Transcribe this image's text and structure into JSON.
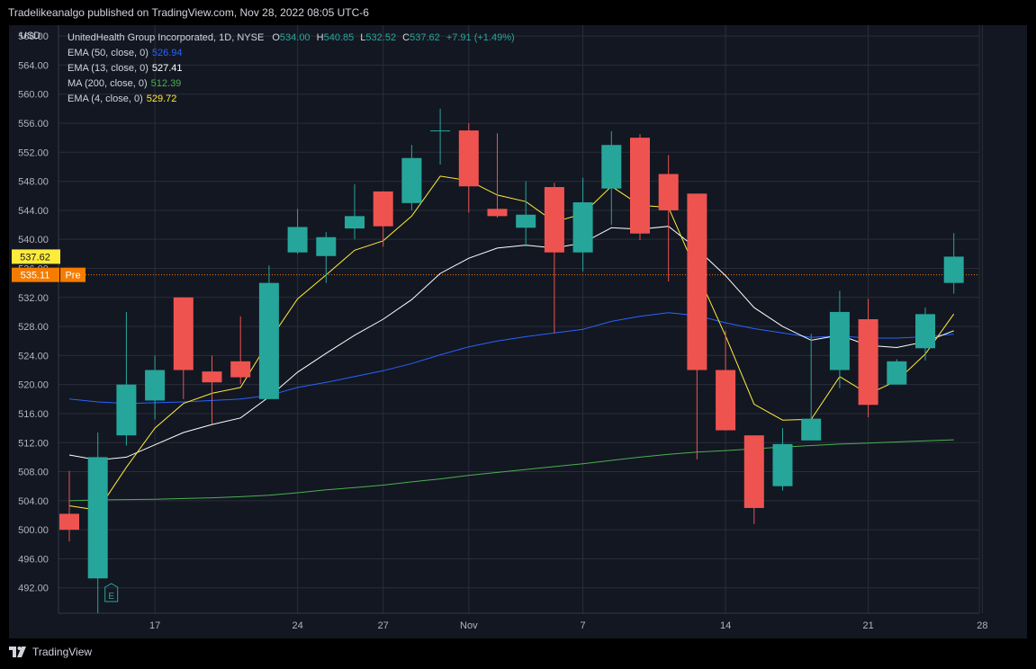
{
  "header": {
    "publisher_line": "Tradelikeanalgo published on TradingView.com, Nov 28, 2022 08:05 UTC-6"
  },
  "footer": {
    "brand": "TradingView"
  },
  "currency": "USD",
  "legend": {
    "symbol": "UnitedHealth Group Incorporated, 1D, NYSE",
    "ohlc": {
      "o_label": "O",
      "o": "534.00",
      "h_label": "H",
      "h": "540.85",
      "l_label": "L",
      "l": "532.52",
      "c_label": "C",
      "c": "537.62",
      "change": "+7.91 (+1.49%)"
    },
    "indicators": [
      {
        "label": "EMA (50, close, 0)",
        "value": "526.94",
        "color": "#2962ff"
      },
      {
        "label": "EMA (13, close, 0)",
        "value": "527.41",
        "color": "#ffffff"
      },
      {
        "label": "MA (200, close, 0)",
        "value": "512.39",
        "color": "#4caf50"
      },
      {
        "label": "EMA (4, close, 0)",
        "value": "529.72",
        "color": "#ffeb3b"
      }
    ]
  },
  "colors": {
    "up": "#26a69a",
    "down": "#ef5350",
    "background": "#131722",
    "grid": "#2a2e39",
    "text": "#b2b5be",
    "ema50": "#2962ff",
    "ema13": "#ffffff",
    "ma200": "#4caf50",
    "ema4": "#ffeb3b",
    "premarket": "#f57c00"
  },
  "chart_data": {
    "type": "candlestick",
    "ylim": [
      488.5,
      569.5
    ],
    "y_ticks": [
      "492.00",
      "496.00",
      "500.00",
      "504.00",
      "508.00",
      "512.00",
      "516.00",
      "520.00",
      "524.00",
      "528.00",
      "532.00",
      "536.00",
      "540.00",
      "544.00",
      "548.00",
      "552.00",
      "556.00",
      "560.00",
      "564.00",
      "568.00"
    ],
    "x_ticks": [
      {
        "label": "17",
        "index": 3
      },
      {
        "label": "24",
        "index": 8
      },
      {
        "label": "27",
        "index": 11
      },
      {
        "label": "Nov",
        "index": 14
      },
      {
        "label": "7",
        "index": 18
      },
      {
        "label": "14",
        "index": 23
      },
      {
        "label": "21",
        "index": 28
      },
      {
        "label": "28",
        "index": 32
      }
    ],
    "candles": [
      {
        "o": 502.2,
        "h": 508.1,
        "l": 498.4,
        "c": 500.0
      },
      {
        "o": 493.3,
        "h": 513.4,
        "l": 485.0,
        "c": 510.0
      },
      {
        "o": 513.0,
        "h": 530.0,
        "l": 511.6,
        "c": 520.0
      },
      {
        "o": 517.8,
        "h": 524.0,
        "l": 515.2,
        "c": 522.0
      },
      {
        "o": 532.0,
        "h": 532.0,
        "l": 518.0,
        "c": 522.0
      },
      {
        "o": 521.8,
        "h": 524.0,
        "l": 514.6,
        "c": 520.3
      },
      {
        "o": 523.2,
        "h": 529.4,
        "l": 520.1,
        "c": 521.0
      },
      {
        "o": 518.0,
        "h": 536.4,
        "l": 518.0,
        "c": 534.0
      },
      {
        "o": 538.2,
        "h": 544.2,
        "l": 538.0,
        "c": 541.7
      },
      {
        "o": 537.7,
        "h": 541.0,
        "l": 534.0,
        "c": 540.3
      },
      {
        "o": 541.5,
        "h": 547.6,
        "l": 540.0,
        "c": 543.2
      },
      {
        "o": 546.6,
        "h": 546.6,
        "l": 539.0,
        "c": 541.8
      },
      {
        "o": 545.0,
        "h": 553.0,
        "l": 544.0,
        "c": 551.2
      },
      {
        "o": 555.0,
        "h": 558.0,
        "l": 550.3,
        "c": 555.0
      },
      {
        "o": 555.0,
        "h": 556.0,
        "l": 543.7,
        "c": 547.3
      },
      {
        "o": 544.2,
        "h": 554.6,
        "l": 543.0,
        "c": 543.2
      },
      {
        "o": 541.6,
        "h": 548.0,
        "l": 539.0,
        "c": 543.4
      },
      {
        "o": 547.2,
        "h": 547.8,
        "l": 527.1,
        "c": 538.2
      },
      {
        "o": 538.2,
        "h": 548.5,
        "l": 535.6,
        "c": 545.1
      },
      {
        "o": 547.0,
        "h": 554.9,
        "l": 542.0,
        "c": 553.0
      },
      {
        "o": 554.0,
        "h": 554.5,
        "l": 539.9,
        "c": 540.8
      },
      {
        "o": 549.0,
        "h": 551.6,
        "l": 534.2,
        "c": 544.0
      },
      {
        "o": 546.3,
        "h": 546.3,
        "l": 509.7,
        "c": 522.0
      },
      {
        "o": 522.0,
        "h": 527.4,
        "l": 513.7,
        "c": 513.7
      },
      {
        "o": 513.0,
        "h": 513.0,
        "l": 500.8,
        "c": 503.0
      },
      {
        "o": 506.0,
        "h": 514.0,
        "l": 505.4,
        "c": 511.8
      },
      {
        "o": 512.3,
        "h": 527.0,
        "l": 512.3,
        "c": 515.3
      },
      {
        "o": 522.0,
        "h": 532.9,
        "l": 519.5,
        "c": 530.0
      },
      {
        "o": 529.0,
        "h": 531.8,
        "l": 515.5,
        "c": 517.2
      },
      {
        "o": 520.0,
        "h": 523.5,
        "l": 520.0,
        "c": 523.2
      },
      {
        "o": 525.0,
        "h": 530.6,
        "l": 523.3,
        "c": 529.7
      },
      {
        "o": 534.0,
        "h": 540.85,
        "l": 532.52,
        "c": 537.62
      }
    ],
    "series": [
      {
        "name": "EMA (50, close, 0)",
        "color": "#2962ff",
        "values": [
          518.0,
          517.6,
          517.4,
          517.5,
          517.6,
          517.8,
          518.0,
          518.5,
          519.6,
          520.3,
          521.1,
          521.9,
          522.9,
          524.1,
          525.2,
          526.0,
          526.6,
          527.1,
          527.6,
          528.7,
          529.4,
          529.9,
          529.5,
          528.5,
          527.7,
          527.1,
          526.5,
          526.7,
          526.4,
          526.4,
          526.6,
          526.94
        ]
      },
      {
        "name": "EMA (13, close, 0)",
        "color": "#ffffff",
        "values": [
          510.3,
          509.6,
          510.0,
          511.7,
          513.4,
          514.5,
          515.4,
          518.3,
          521.7,
          524.3,
          526.8,
          529.0,
          531.7,
          535.3,
          537.4,
          538.8,
          539.2,
          538.8,
          539.5,
          541.6,
          541.4,
          541.8,
          538.7,
          535.0,
          530.6,
          528.0,
          526.1,
          526.8,
          525.4,
          525.1,
          525.9,
          527.41
        ]
      },
      {
        "name": "MA (200, close, 0)",
        "color": "#4caf50",
        "values": [
          504.0,
          504.1,
          504.15,
          504.2,
          504.3,
          504.4,
          504.55,
          504.75,
          505.1,
          505.5,
          505.8,
          506.15,
          506.6,
          507.0,
          507.5,
          507.9,
          508.3,
          508.7,
          509.1,
          509.55,
          510.0,
          510.4,
          510.7,
          510.9,
          511.15,
          511.4,
          511.6,
          511.8,
          511.95,
          512.1,
          512.25,
          512.39
        ]
      },
      {
        "name": "EMA (4, close, 0)",
        "color": "#ffeb3b",
        "values": [
          503.3,
          502.7,
          508.6,
          514.0,
          517.4,
          518.8,
          519.6,
          526.0,
          531.8,
          535.1,
          538.5,
          539.8,
          543.2,
          548.7,
          548.1,
          546.1,
          545.2,
          542.4,
          543.5,
          547.3,
          544.7,
          544.4,
          535.4,
          526.7,
          517.3,
          515.1,
          515.2,
          521.1,
          518.7,
          520.5,
          524.2,
          529.72
        ]
      }
    ],
    "price_labels": [
      {
        "value": "537.62",
        "price": 537.62,
        "color": "#ffeb3b"
      },
      {
        "value": "535.11",
        "price": 535.11,
        "color": "#f57c00",
        "tag": "Pre"
      }
    ],
    "earnings_marker": {
      "label": "E",
      "index": 1
    }
  }
}
